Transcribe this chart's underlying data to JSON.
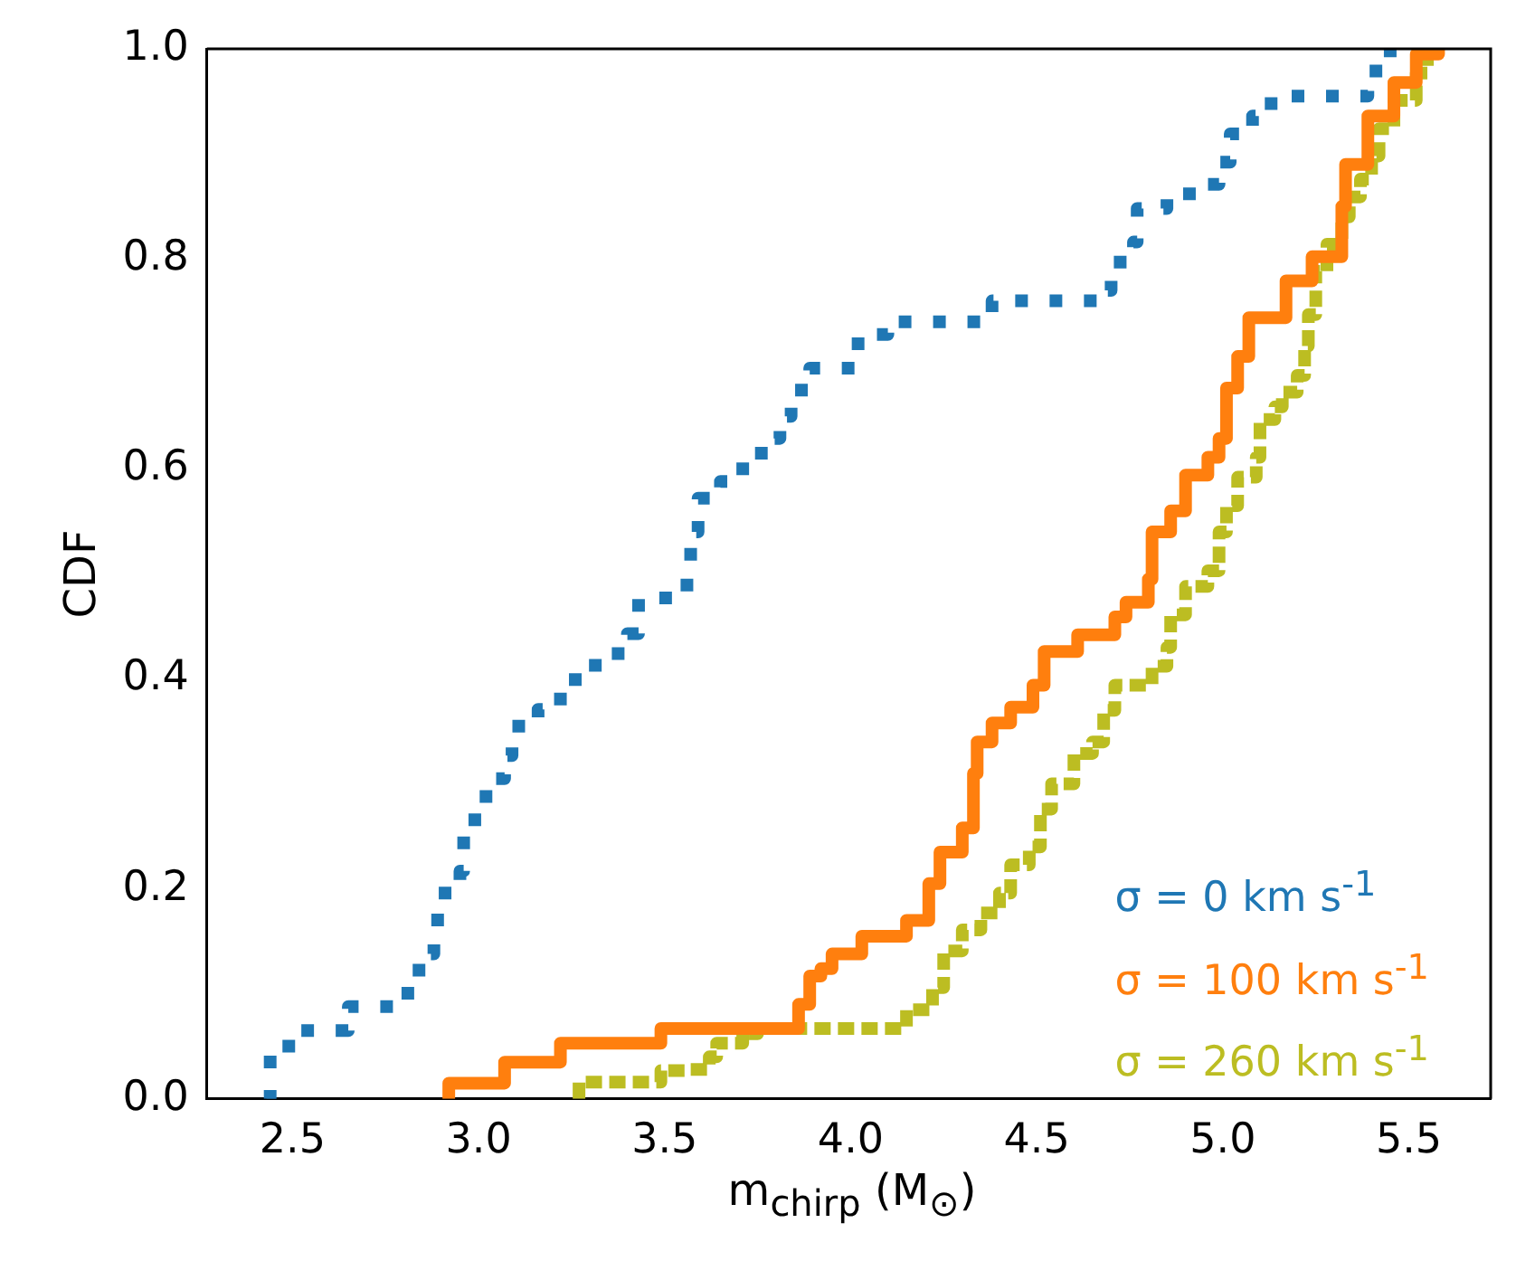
{
  "chart_data": {
    "type": "step",
    "xlabel": "m$_{chirp}$ (M$_{⊙}$)",
    "ylabel": "CDF",
    "xlim": [
      2.27,
      5.72
    ],
    "ylim": [
      0,
      1
    ],
    "xticks": [
      2.5,
      {
        "value": 3,
        "label": "3.0"
      },
      3.5,
      {
        "value": 4,
        "label": "4.0"
      },
      4.5,
      {
        "value": 5,
        "label": "5.0"
      },
      5.5
    ],
    "yticks": [
      {
        "value": 0,
        "label": "0.0"
      },
      0.2,
      0.4,
      0.6,
      0.8,
      {
        "value": 1,
        "label": "1.0"
      }
    ],
    "legend": "bottom right",
    "marker": "none",
    "series": [
      {
        "name": "σ = 0 km s$^{-1}$",
        "color": "#1f77b4",
        "line_style": "dotted",
        "x": [
          2.43,
          2.44,
          2.49,
          2.65,
          2.81,
          2.84,
          2.88,
          2.89,
          2.95,
          2.96,
          2.99,
          3.02,
          3.07,
          3.09,
          3.16,
          3.22,
          3.26,
          3.34,
          3.4,
          3.43,
          3.56,
          3.57,
          3.59,
          3.65,
          3.71,
          3.76,
          3.81,
          3.84,
          3.89,
          4.02,
          4.1,
          4.38,
          4.67,
          4.7,
          4.76,
          4.77,
          4.85,
          4.94,
          4.99,
          5.02,
          5.08,
          5.13,
          5.39,
          5.45
        ],
        "values": [
          0,
          0.044,
          0.065,
          0.088,
          0.11,
          0.138,
          0.16,
          0.196,
          0.217,
          0.25,
          0.28,
          0.305,
          0.327,
          0.355,
          0.371,
          0.392,
          0.413,
          0.424,
          0.443,
          0.477,
          0.503,
          0.54,
          0.572,
          0.588,
          0.606,
          0.629,
          0.65,
          0.675,
          0.696,
          0.728,
          0.74,
          0.76,
          0.77,
          0.797,
          0.816,
          0.848,
          0.862,
          0.871,
          0.892,
          0.919,
          0.936,
          0.955,
          0.979,
          1.0
        ]
      },
      {
        "name": "σ = 100 km s$^{-1}$",
        "color": "#ff7f0e",
        "line_style": "solid",
        "x": [
          2.92,
          2.92,
          3.07,
          3.22,
          3.49,
          3.86,
          3.89,
          3.92,
          3.95,
          4.03,
          4.15,
          4.21,
          4.24,
          4.3,
          4.33,
          4.34,
          4.38,
          4.43,
          4.49,
          4.52,
          4.61,
          4.71,
          4.74,
          4.8,
          4.81,
          4.86,
          4.9,
          4.96,
          4.99,
          5.01,
          5.04,
          5.07,
          5.17,
          5.24,
          5.32,
          5.33,
          5.39,
          5.46,
          5.52,
          5.58
        ],
        "values": [
          0,
          0.015,
          0.035,
          0.053,
          0.067,
          0.09,
          0.117,
          0.124,
          0.138,
          0.155,
          0.17,
          0.205,
          0.235,
          0.258,
          0.31,
          0.34,
          0.358,
          0.373,
          0.394,
          0.426,
          0.442,
          0.459,
          0.473,
          0.495,
          0.54,
          0.56,
          0.594,
          0.611,
          0.629,
          0.677,
          0.707,
          0.744,
          0.779,
          0.802,
          0.85,
          0.89,
          0.936,
          0.968,
          0.995,
          1.0
        ]
      },
      {
        "name": "σ = 260 km s$^{-1}$",
        "color": "#bcbd22",
        "line_style": "dashed",
        "x": [
          3.27,
          3.27,
          3.49,
          3.56,
          3.62,
          3.64,
          3.71,
          3.75,
          4.15,
          4.22,
          4.25,
          4.3,
          4.35,
          4.4,
          4.43,
          4.48,
          4.51,
          4.54,
          4.6,
          4.65,
          4.68,
          4.71,
          4.81,
          4.85,
          4.86,
          4.9,
          4.96,
          4.99,
          5.01,
          5.04,
          5.09,
          5.1,
          5.14,
          5.16,
          5.2,
          5.22,
          5.23,
          5.25,
          5.28,
          5.32,
          5.34,
          5.37,
          5.4,
          5.42,
          5.46,
          5.52,
          5.55
        ],
        "values": [
          0,
          0.016,
          0.027,
          0.028,
          0.04,
          0.053,
          0.062,
          0.067,
          0.085,
          0.106,
          0.141,
          0.161,
          0.177,
          0.196,
          0.223,
          0.24,
          0.276,
          0.3,
          0.329,
          0.34,
          0.37,
          0.394,
          0.412,
          0.43,
          0.461,
          0.488,
          0.503,
          0.54,
          0.565,
          0.592,
          0.611,
          0.647,
          0.659,
          0.673,
          0.689,
          0.717,
          0.747,
          0.788,
          0.814,
          0.84,
          0.859,
          0.876,
          0.898,
          0.924,
          0.951,
          0.977,
          0.998
        ]
      }
    ]
  }
}
